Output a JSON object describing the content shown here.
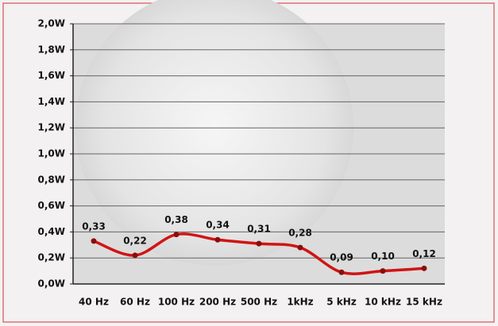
{
  "chart_data": {
    "type": "line",
    "categories": [
      "40 Hz",
      "60 Hz",
      "100 Hz",
      "200 Hz",
      "500 Hz",
      "1kHz",
      "5 kHz",
      "10 kHz",
      "15 kHz"
    ],
    "series": [
      {
        "color": "#d01414",
        "values": [
          0.33,
          0.22,
          0.38,
          0.34,
          0.31,
          0.28,
          0.09,
          0.1,
          0.12
        ],
        "value_labels": [
          "0,33",
          "0,22",
          "0,38",
          "0,34",
          "0,31",
          "0,28",
          "0,09",
          "0,10",
          "0,12"
        ]
      }
    ],
    "ylim": [
      0,
      2.0
    ],
    "yticks": [
      {
        "value": 0,
        "label": "0,0W"
      },
      {
        "value": 0.2,
        "label": "0,2W"
      },
      {
        "value": 0.4,
        "label": "0,4W"
      },
      {
        "value": 0.6,
        "label": "0,6W"
      },
      {
        "value": 0.8,
        "label": "0,8W"
      },
      {
        "value": 1.0,
        "label": "1,0W"
      },
      {
        "value": 1.2,
        "label": "1,2W"
      },
      {
        "value": 1.4,
        "label": "1,4W"
      },
      {
        "value": 1.6,
        "label": "1,6W"
      },
      {
        "value": 1.8,
        "label": "1,8W"
      },
      {
        "value": 2.0,
        "label": "2,0W"
      }
    ],
    "grid": true
  }
}
